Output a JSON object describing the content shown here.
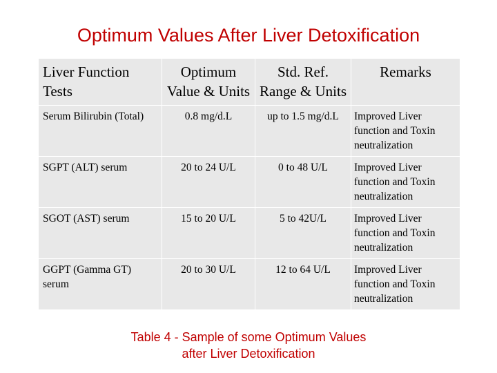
{
  "title": "Optimum Values After Liver Detoxification",
  "table": {
    "headers": [
      "Liver Function Tests",
      "Optimum Value & Units",
      "Std. Ref. Range & Units",
      "Remarks"
    ],
    "rows": [
      [
        "Serum Bilirubin (Total)",
        "0.8 mg/d.L",
        "up to 1.5 mg/d.L",
        "Improved Liver function and Toxin neutralization"
      ],
      [
        "SGPT (ALT) serum",
        "20 to 24 U/L",
        "0 to 48 U/L",
        "Improved Liver function and Toxin neutralization"
      ],
      [
        "SGOT (AST) serum",
        "15 to 20 U/L",
        "5 to 42U/L",
        "Improved Liver function and Toxin neutralization"
      ],
      [
        "GGPT (Gamma GT) serum",
        "20 to 30 U/L",
        "12 to 64 U/L",
        "Improved Liver function and Toxin neutralization"
      ]
    ]
  },
  "caption": {
    "line1": "Table 4 - Sample of some Optimum Values",
    "line2": "after Liver Detoxification"
  },
  "colors": {
    "accent": "#c00000",
    "table_bg": "#e8e8e8"
  }
}
